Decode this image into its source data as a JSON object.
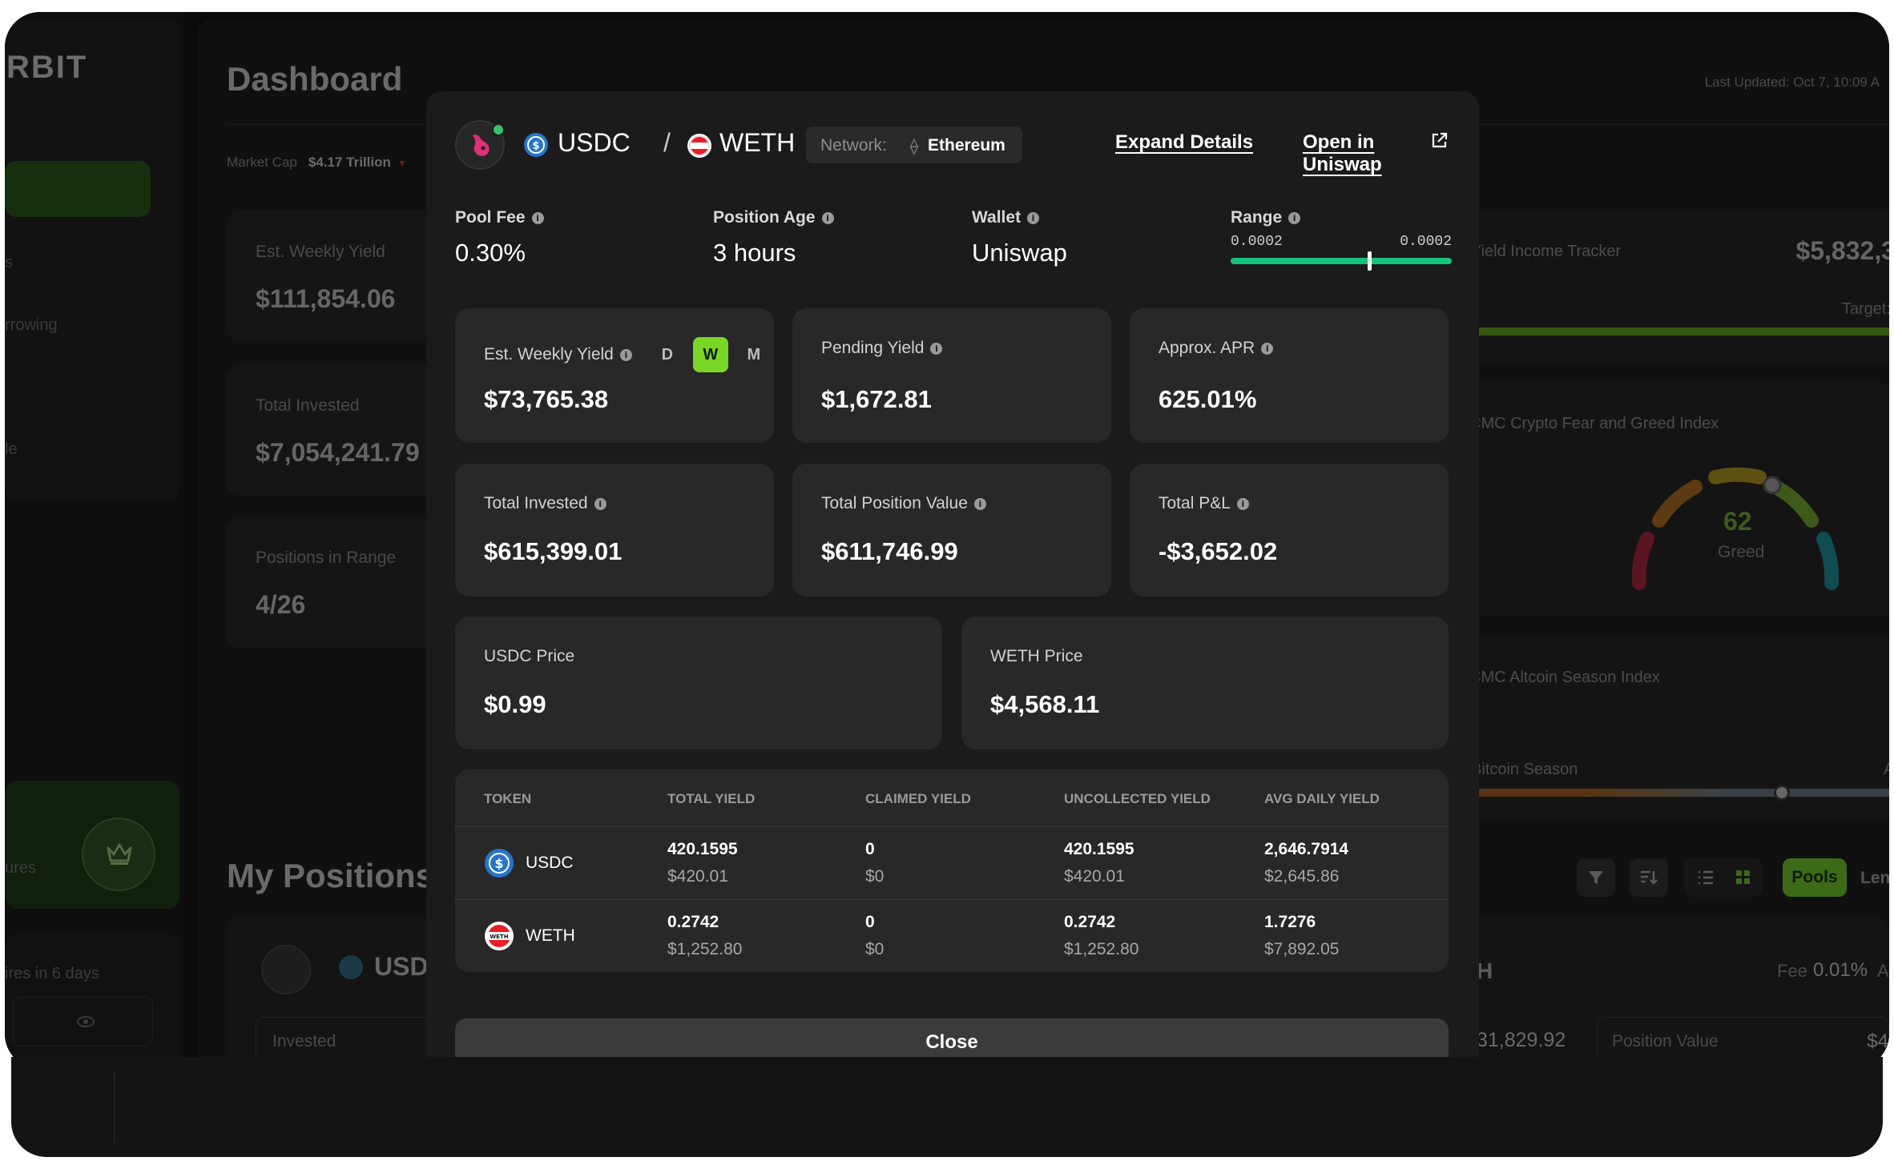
{
  "bg": {
    "logo": "RBIT",
    "dashboard_title": "Dashboard",
    "last_updated": "Last Updated: Oct 7, 10:09 A",
    "market_cap_label": "Market Cap",
    "market_cap_value": "$4.17 Trillion",
    "sidebar_labels": [
      "s",
      "rrowing",
      "le",
      "ures",
      "ires in 6 days"
    ],
    "cards": [
      {
        "label": "Est. Weekly Yield",
        "value": "$111,854.06"
      },
      {
        "label": "Total Invested",
        "value": "$7,054,241.79"
      },
      {
        "label": "Positions in Range",
        "value": "4/26"
      }
    ],
    "yield_tracker": {
      "label": "Yield Income Tracker",
      "value": "$5,832,3",
      "target": "Target:"
    },
    "fear_greed": {
      "label": "CMC Crypto Fear and Greed Index",
      "value": "62",
      "status": "Greed"
    },
    "altcoin": {
      "label": "CMC Altcoin Season Index",
      "status": "Bitcoin Season",
      "edge": "A"
    },
    "my_positions": "My Positions",
    "pools_btn": "Pools",
    "lend_btn": "Lend",
    "pos_card": {
      "pair": "USDC",
      "invested_label": "Invested",
      "value_frag": "31,829.92",
      "position_value_label": "Position Value",
      "pv_frag": "$4",
      "fee_label": "Fee",
      "fee_value": "0.01%",
      "h_frag": "H",
      "a_frag": "A"
    }
  },
  "modal": {
    "token_a": "USDC",
    "separator": "/",
    "token_b": "WETH",
    "network_label": "Network:",
    "network_value": "Ethereum",
    "expand_details": "Expand Details",
    "open_uniswap": "Open in Uniswap",
    "stats": [
      {
        "label": "Pool Fee",
        "value": "0.30%"
      },
      {
        "label": "Position Age",
        "value": "3 hours"
      },
      {
        "label": "Wallet",
        "value": "Uniswap"
      }
    ],
    "range": {
      "label": "Range",
      "low": "0.0002",
      "high": "0.0002",
      "current_fraction": 0.62
    },
    "toggle": [
      "D",
      "W",
      "M"
    ],
    "cards_row1": [
      {
        "label": "Est. Weekly Yield",
        "value": "$73,765.38"
      },
      {
        "label": "Pending Yield",
        "value": "$1,672.81"
      },
      {
        "label": "Approx. APR",
        "value": "625.01%"
      }
    ],
    "cards_row2": [
      {
        "label": "Total Invested",
        "value": "$615,399.01"
      },
      {
        "label": "Total Position Value",
        "value": "$611,746.99"
      },
      {
        "label": "Total P&L",
        "value": "-$3,652.02"
      }
    ],
    "cards_row3": [
      {
        "label": "USDC Price",
        "value": "$0.99"
      },
      {
        "label": "WETH Price",
        "value": "$4,568.11"
      }
    ],
    "table": {
      "headers": [
        "TOKEN",
        "TOTAL YIELD",
        "CLAIMED YIELD",
        "UNCOLLECTED YIELD",
        "AVG DAILY YIELD"
      ],
      "rows": [
        {
          "token": "USDC",
          "total_a": "420.1595",
          "total_b": "$420.01",
          "claimed_a": "0",
          "claimed_b": "$0",
          "uncollected_a": "420.1595",
          "uncollected_b": "$420.01",
          "avg_a": "2,646.7914",
          "avg_b": "$2,645.86"
        },
        {
          "token": "WETH",
          "total_a": "0.2742",
          "total_b": "$1,252.80",
          "claimed_a": "0",
          "claimed_b": "$0",
          "uncollected_a": "0.2742",
          "uncollected_b": "$1,252.80",
          "avg_a": "1.7276",
          "avg_b": "$7,892.05"
        }
      ]
    },
    "close": "Close"
  }
}
